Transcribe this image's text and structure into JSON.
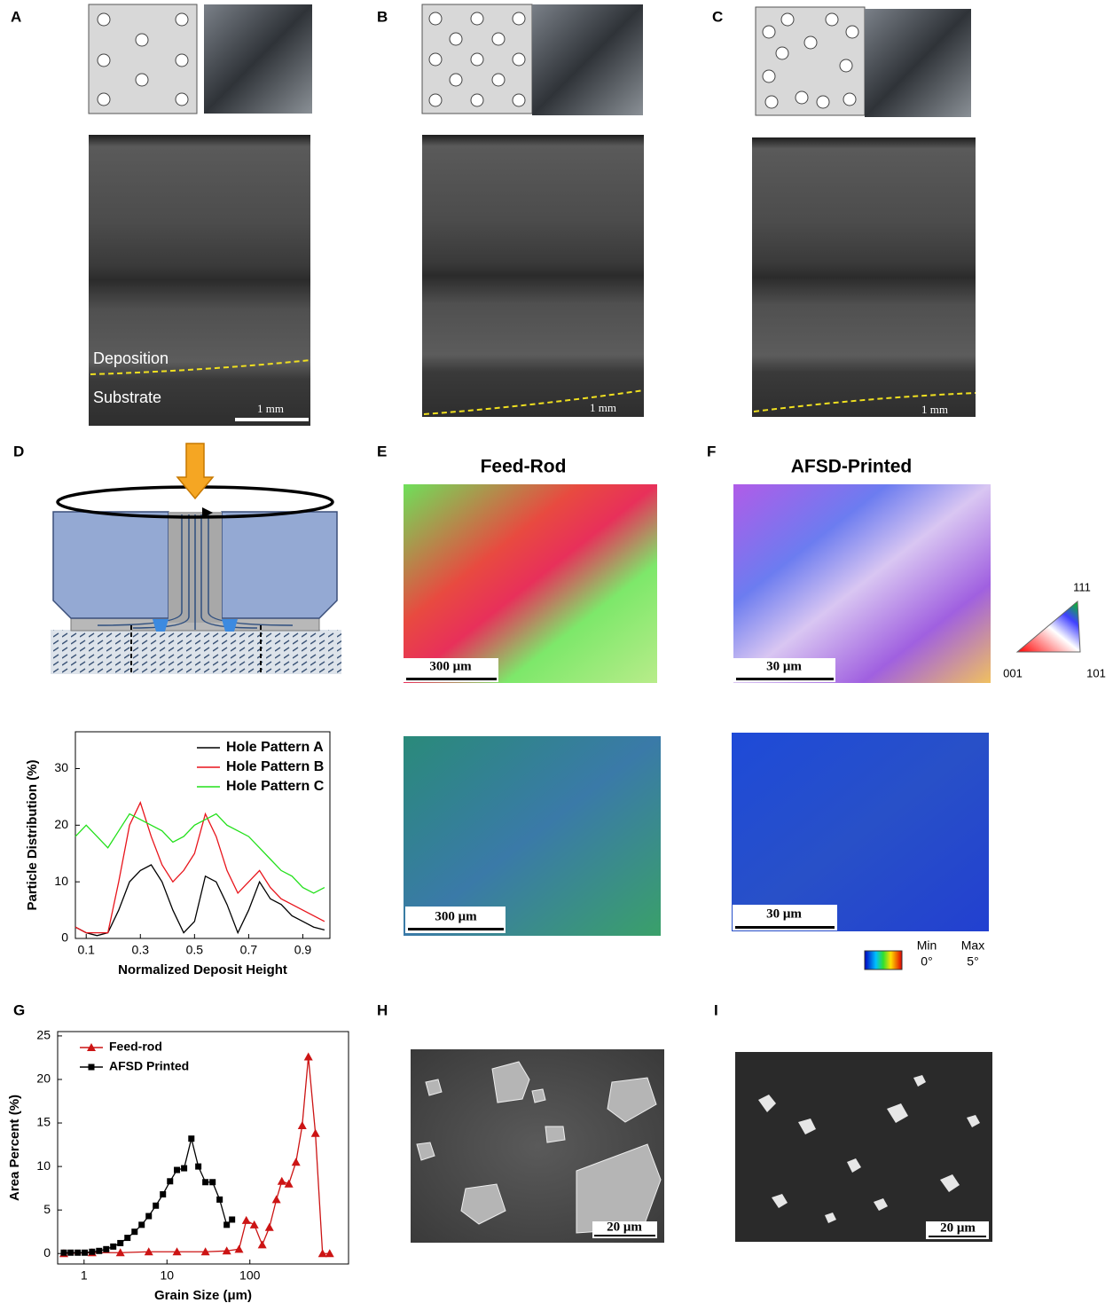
{
  "panel_labels": [
    "A",
    "B",
    "C",
    "D",
    "E",
    "F",
    "G",
    "H",
    "I"
  ],
  "panel_a": {
    "deposition_label": "Deposition",
    "substrate_label": "Substrate",
    "scale_bar": "1 mm"
  },
  "panel_b": {
    "scale_bar": "1 mm"
  },
  "panel_c": {
    "scale_bar": "1 mm"
  },
  "panel_e": {
    "title": "Feed-Rod",
    "scale_bar_ipf": "300 μm",
    "scale_bar_kam": "300 μm"
  },
  "panel_f": {
    "title": "AFSD-Printed",
    "scale_bar_ipf": "30 μm",
    "scale_bar_kam": "30 μm",
    "ipf_legend": [
      "111",
      "001",
      "101"
    ],
    "kam_legend": {
      "min": "Min",
      "max": "Max",
      "min_value": "0°",
      "max_value": "5°"
    }
  },
  "panel_h": {
    "scale_bar": "20 μm"
  },
  "panel_i": {
    "scale_bar": "20 μm"
  },
  "chart_data": [
    {
      "type": "line",
      "x_label": "Normalized Deposit Height",
      "y_label": "Particle Distribution (%)",
      "x": [
        0.06,
        0.1,
        0.14,
        0.18,
        0.22,
        0.26,
        0.3,
        0.34,
        0.38,
        0.42,
        0.46,
        0.5,
        0.54,
        0.58,
        0.62,
        0.66,
        0.7,
        0.74,
        0.78,
        0.82,
        0.86,
        0.9,
        0.94,
        0.98
      ],
      "xlim": [
        0.06,
        1.0
      ],
      "xticks": [
        0.1,
        0.3,
        0.5,
        0.7,
        0.9
      ],
      "ylim": [
        0,
        36.5
      ],
      "yticks": [
        0,
        10,
        20,
        30
      ],
      "legend": "upper right",
      "series": [
        {
          "name": "Hole Pattern A",
          "color": "#000000",
          "values": [
            2,
            1,
            0.5,
            1,
            5,
            10,
            12,
            13,
            10,
            5,
            1,
            3,
            11,
            10,
            6,
            1,
            5,
            10,
            7,
            6,
            4,
            3,
            2,
            1.5
          ]
        },
        {
          "name": "Hole Pattern B",
          "color": "#e8141b",
          "values": [
            2,
            1,
            1,
            1,
            10,
            20,
            24,
            18,
            13,
            10,
            12,
            15,
            22,
            18,
            12,
            8,
            10,
            12,
            9,
            7,
            6,
            5,
            4,
            3
          ]
        },
        {
          "name": "Hole Pattern C",
          "color": "#22e01a",
          "values": [
            18,
            20,
            18,
            16,
            19,
            22,
            21,
            20,
            19,
            17,
            18,
            20,
            21,
            22,
            20,
            19,
            18,
            16,
            14,
            12,
            11,
            9,
            8,
            9
          ]
        }
      ]
    },
    {
      "type": "line",
      "x_label": "Grain Size (μm)",
      "y_label": "Area Percent (%)",
      "xscale": "log",
      "xlim": [
        0.48,
        1550
      ],
      "xticks": [
        1,
        10,
        100
      ],
      "ylim": [
        -1.2,
        25.5
      ],
      "yticks": [
        0,
        5,
        10,
        15,
        20,
        25
      ],
      "legend": "upper left",
      "series": [
        {
          "name": "Feed-rod",
          "color": "#cc1414",
          "marker": "triangle",
          "x": [
            0.57,
            1.25,
            2.74,
            6.03,
            13.2,
            29.1,
            52.6,
            74,
            90.6,
            113,
            141,
            172,
            209,
            243,
            295,
            360,
            428,
            508,
            618,
            753,
            918
          ],
          "values": [
            0,
            0.1,
            0.1,
            0.2,
            0.2,
            0.2,
            0.3,
            0.5,
            3.8,
            3.3,
            1,
            3,
            6.2,
            8.3,
            8,
            10.5,
            14.7,
            22.6,
            13.8,
            0,
            0
          ]
        },
        {
          "name": "AFSD Printed",
          "color": "#000000",
          "marker": "square",
          "x": [
            0.57,
            0.69,
            0.84,
            1.02,
            1.25,
            1.52,
            1.85,
            2.25,
            2.74,
            3.34,
            4.07,
            4.95,
            6.03,
            7.34,
            8.94,
            10.9,
            13.2,
            16.1,
            19.7,
            23.9,
            29.1,
            35.5,
            43.2,
            52.6,
            61
          ],
          "values": [
            0.1,
            0.1,
            0.1,
            0.1,
            0.2,
            0.3,
            0.5,
            0.8,
            1.2,
            1.8,
            2.5,
            3.3,
            4.3,
            5.5,
            6.8,
            8.3,
            9.6,
            9.8,
            13.2,
            10,
            8.2,
            8.2,
            6.2,
            3.3,
            3.9
          ]
        }
      ]
    }
  ]
}
